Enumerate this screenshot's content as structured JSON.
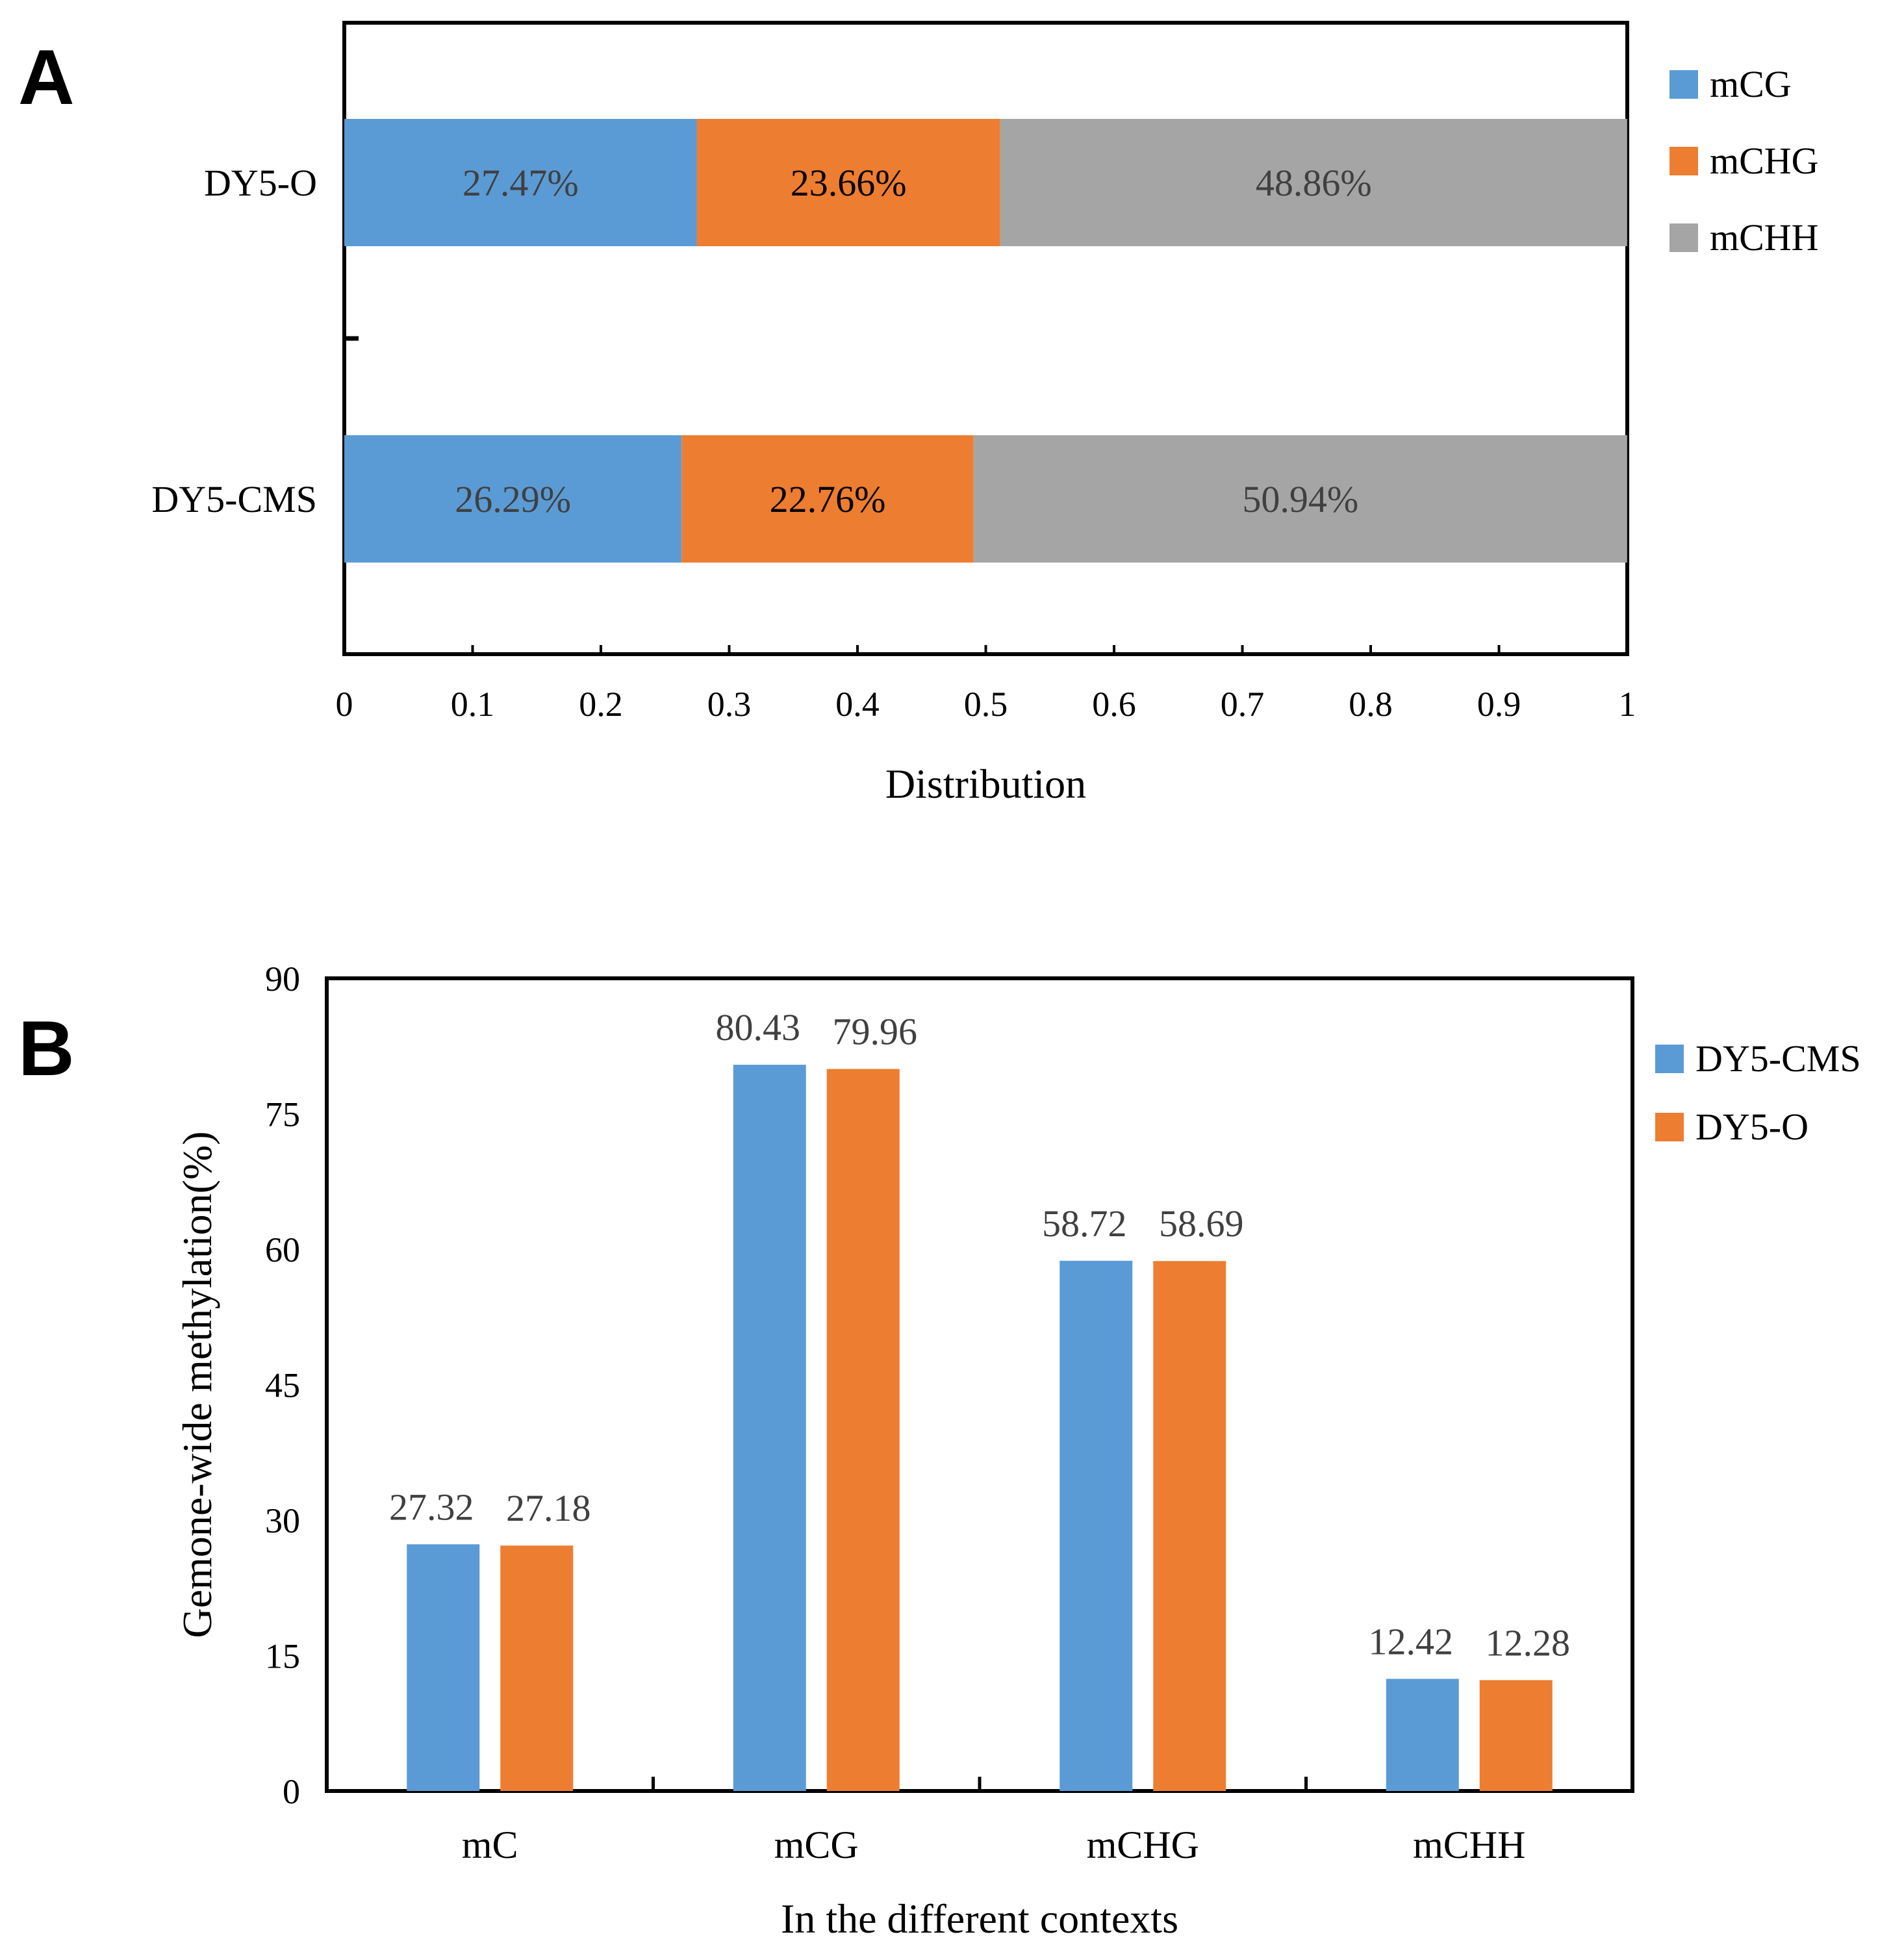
{
  "panels": {
    "a": {
      "label": "A"
    },
    "b": {
      "label": "B"
    }
  },
  "colors": {
    "blue": "#5b9bd5",
    "orange": "#ed7d31",
    "gray": "#a5a5a5",
    "axis": "#000000",
    "label_text": "#404040",
    "dark_label_text": "#000000"
  },
  "chart_data": [
    {
      "id": "A",
      "type": "bar",
      "orientation": "horizontal",
      "stacked": true,
      "title": "",
      "xlabel": "Distribution",
      "ylabel": "",
      "xlim": [
        0,
        1
      ],
      "xticks": [
        "0",
        "0.1",
        "0.2",
        "0.3",
        "0.4",
        "0.5",
        "0.6",
        "0.7",
        "0.8",
        "0.9",
        "1"
      ],
      "categories": [
        "DY5-O",
        "DY5-CMS"
      ],
      "series": [
        {
          "name": "mCG",
          "color": "#5b9bd5",
          "values": [
            0.2747,
            0.2629
          ],
          "labels": [
            "27.47%",
            "26.29%"
          ]
        },
        {
          "name": "mCHG",
          "color": "#ed7d31",
          "values": [
            0.2366,
            0.2276
          ],
          "labels": [
            "23.66%",
            "22.76%"
          ]
        },
        {
          "name": "mCHH",
          "color": "#a5a5a5",
          "values": [
            0.4886,
            0.5094
          ],
          "labels": [
            "48.86%",
            "50.94%"
          ]
        }
      ],
      "legend": "right",
      "grid": false
    },
    {
      "id": "B",
      "type": "bar",
      "orientation": "vertical",
      "stacked": false,
      "title": "",
      "xlabel": "In the different contexts",
      "ylabel": "Gemone-wide methylation(%)",
      "ylim": [
        0,
        90
      ],
      "yticks": [
        "0",
        "15",
        "30",
        "45",
        "60",
        "75",
        "90"
      ],
      "categories": [
        "mC",
        "mCG",
        "mCHG",
        "mCHH"
      ],
      "series": [
        {
          "name": "DY5-CMS",
          "color": "#5b9bd5",
          "values": [
            27.32,
            80.43,
            58.72,
            12.42
          ],
          "labels": [
            "27.32",
            "80.43",
            "58.72",
            "12.42"
          ]
        },
        {
          "name": "DY5-O",
          "color": "#ed7d31",
          "values": [
            27.18,
            79.96,
            58.69,
            12.28
          ],
          "labels": [
            "27.18",
            "79.96",
            "58.69",
            "12.28"
          ]
        }
      ],
      "legend": "right",
      "grid": false
    }
  ]
}
